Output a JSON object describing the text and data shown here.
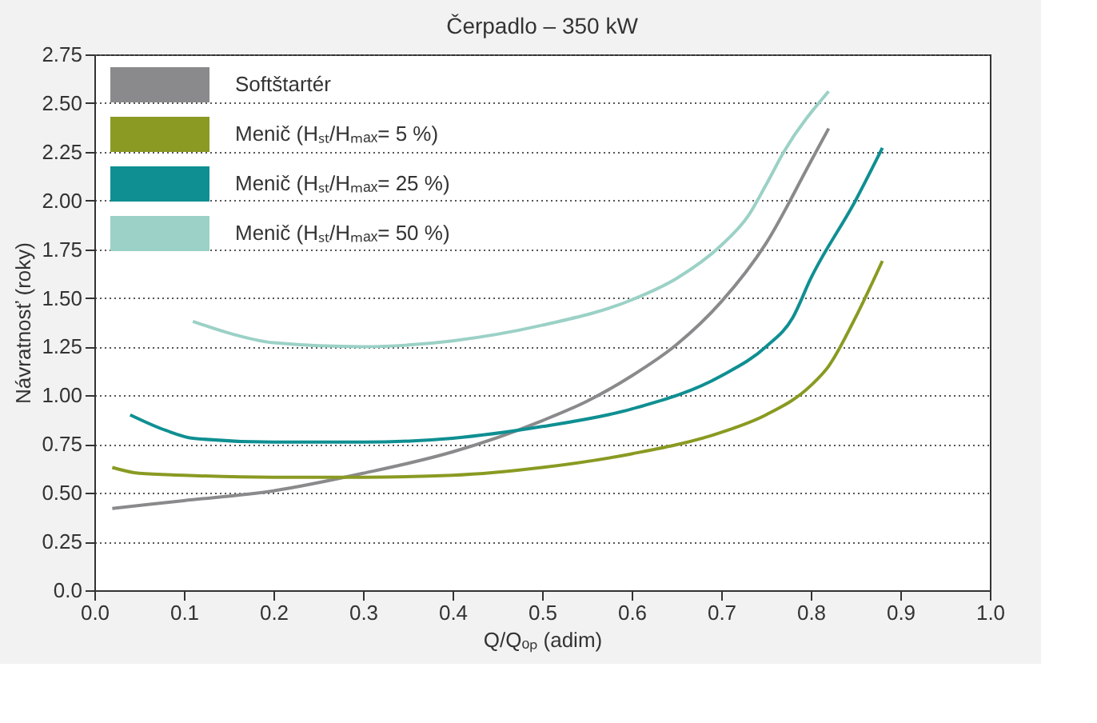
{
  "chart_data": {
    "type": "line",
    "title": "Čerpadlo – 350 kW",
    "xlabel": "Q/Qₒₚ (adim)",
    "ylabel": "Návratnosť (roky)",
    "xlim": [
      0,
      1.0
    ],
    "xticks": [
      {
        "value": 0,
        "label": "0.0"
      },
      0.1,
      0.2,
      0.3,
      0.4,
      0.5,
      0.6,
      0.7,
      0.8,
      0.9,
      {
        "value": 1,
        "label": "1.0"
      }
    ],
    "ylim": [
      0,
      2.75
    ],
    "yticks": [
      {
        "value": 0,
        "label": "0.0"
      },
      0.25,
      {
        "value": 0.5,
        "label": "0.50"
      },
      0.75,
      {
        "value": 1,
        "label": "1.00"
      },
      1.25,
      {
        "value": 1.5,
        "label": "1.50"
      },
      1.75,
      {
        "value": 2,
        "label": "2.00"
      },
      2.25,
      {
        "value": 2.5,
        "label": "2.50"
      },
      2.75
    ],
    "grid": "y",
    "legend": "top left",
    "marker": "none",
    "line_style": "solid",
    "series": [
      {
        "name": "Softštartér",
        "color": "#8a8a8c",
        "x": [
          0.02,
          0.1,
          0.2,
          0.3,
          0.4,
          0.5,
          0.55,
          0.6,
          0.65,
          0.7,
          0.75,
          0.8,
          0.82
        ],
        "values": [
          0.42,
          0.46,
          0.51,
          0.6,
          0.71,
          0.87,
          0.97,
          1.1,
          1.26,
          1.48,
          1.78,
          2.2,
          2.37
        ]
      },
      {
        "name": "Menič (Hₛₜ/Hₘₐₓ= 5 %)",
        "color": "#8a9a22",
        "x": [
          0.02,
          0.05,
          0.1,
          0.2,
          0.3,
          0.4,
          0.5,
          0.6,
          0.7,
          0.75,
          0.8,
          0.82,
          0.85,
          0.88
        ],
        "values": [
          0.63,
          0.6,
          0.59,
          0.58,
          0.58,
          0.59,
          0.63,
          0.7,
          0.81,
          0.9,
          1.05,
          1.15,
          1.4,
          1.69
        ]
      },
      {
        "name": "Menič (Hₛₜ/Hₘₐₓ= 25 %)",
        "color": "#0f8f92",
        "x": [
          0.04,
          0.08,
          0.11,
          0.2,
          0.3,
          0.4,
          0.5,
          0.6,
          0.7,
          0.75,
          0.78,
          0.8,
          0.85,
          0.88
        ],
        "values": [
          0.9,
          0.82,
          0.78,
          0.76,
          0.76,
          0.78,
          0.84,
          0.93,
          1.1,
          1.25,
          1.4,
          1.6,
          2.0,
          2.27
        ]
      },
      {
        "name": "Menič (Hₛₜ/Hₘₐₓ= 50 %)",
        "color": "#9bd1c6",
        "x": [
          0.11,
          0.15,
          0.2,
          0.3,
          0.4,
          0.5,
          0.6,
          0.65,
          0.7,
          0.73,
          0.75,
          0.77,
          0.82
        ],
        "values": [
          1.38,
          1.32,
          1.27,
          1.25,
          1.28,
          1.36,
          1.49,
          1.6,
          1.77,
          1.92,
          2.08,
          2.25,
          2.56
        ]
      }
    ]
  }
}
